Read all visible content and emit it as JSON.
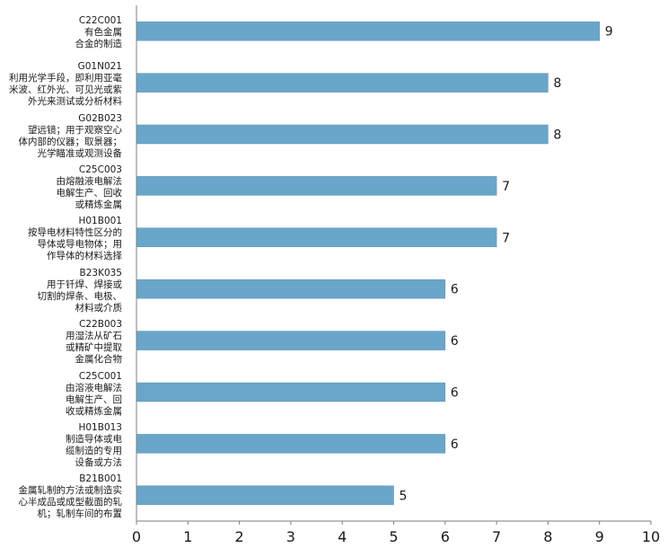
{
  "chart_data": {
    "type": "bar",
    "orientation": "horizontal",
    "categories": [
      [
        "C22C001",
        "有色金属",
        "合金的制造"
      ],
      [
        "G01N021",
        "利用光学手段，即利用亚毫",
        "米波、红外光、可见光或紫",
        "外光来测试或分析材料"
      ],
      [
        "G02B023",
        "望远镜；用于观察空心",
        "体内部的仪器；取景器；",
        "光学瞄准或观测设备"
      ],
      [
        "C25C003",
        "由熔融液电解法",
        "电解生产、回收",
        "或精炼金属"
      ],
      [
        "H01B001",
        "按导电材料特性区分的",
        "导体或导电物体；用",
        "作导体的材料选择"
      ],
      [
        "B23K035",
        "用于钎焊、焊接或",
        "切割的焊条、电极、",
        "材料或介质"
      ],
      [
        "C22B003",
        "用湿法从矿石",
        "或精矿中提取",
        "金属化合物"
      ],
      [
        "C25C001",
        "由溶液电解法",
        "电解生产、回",
        "收或精炼金属"
      ],
      [
        "H01B013",
        "制造导体或电",
        "缆制造的专用",
        "设备或方法"
      ],
      [
        "B21B001",
        "金属轧制的方法或制造实",
        "心半成品或成型截面的轧",
        "机；轧制车间的布置"
      ]
    ],
    "values": [
      9,
      8,
      8,
      7,
      7,
      6,
      6,
      6,
      6,
      5
    ],
    "xlim": [
      0,
      10
    ],
    "xticks": [
      "0",
      "1",
      "2",
      "3",
      "4",
      "5",
      "6",
      "7",
      "8",
      "9",
      "10"
    ],
    "bar_color": "#6aa6c9",
    "grid": false,
    "title": "",
    "xlabel": "",
    "ylabel": ""
  }
}
